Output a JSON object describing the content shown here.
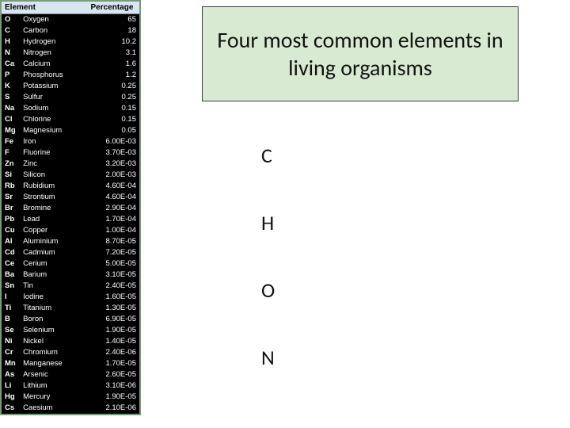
{
  "table": {
    "headers": {
      "element": "Element",
      "percentage": "Percentage"
    },
    "rows": [
      {
        "sym": "O",
        "name": "Oxygen",
        "pct": "65"
      },
      {
        "sym": "C",
        "name": "Carbon",
        "pct": "18"
      },
      {
        "sym": "H",
        "name": "Hydrogen",
        "pct": "10.2"
      },
      {
        "sym": "N",
        "name": "Nitrogen",
        "pct": "3.1"
      },
      {
        "sym": "Ca",
        "name": "Calcium",
        "pct": "1.6"
      },
      {
        "sym": "P",
        "name": "Phosphorus",
        "pct": "1.2"
      },
      {
        "sym": "K",
        "name": "Potassium",
        "pct": "0.25"
      },
      {
        "sym": "S",
        "name": "Sulfur",
        "pct": "0.25"
      },
      {
        "sym": "Na",
        "name": "Sodium",
        "pct": "0.15"
      },
      {
        "sym": "Cl",
        "name": "Chlorine",
        "pct": "0.15"
      },
      {
        "sym": "Mg",
        "name": "Magnesium",
        "pct": "0.05"
      },
      {
        "sym": "Fe",
        "name": "Iron",
        "pct": "6.00E-03"
      },
      {
        "sym": "F",
        "name": "Fluorine",
        "pct": "3.70E-03"
      },
      {
        "sym": "Zn",
        "name": "Zinc",
        "pct": "3.20E-03"
      },
      {
        "sym": "Si",
        "name": "Silicon",
        "pct": "2.00E-03"
      },
      {
        "sym": "Rb",
        "name": "Rubidium",
        "pct": "4.60E-04"
      },
      {
        "sym": "Sr",
        "name": "Strontium",
        "pct": "4.60E-04"
      },
      {
        "sym": "Br",
        "name": "Bromine",
        "pct": "2.90E-04"
      },
      {
        "sym": "Pb",
        "name": "Lead",
        "pct": "1.70E-04"
      },
      {
        "sym": "Cu",
        "name": "Copper",
        "pct": "1.00E-04"
      },
      {
        "sym": "Al",
        "name": "Aluminium",
        "pct": "8.70E-05"
      },
      {
        "sym": "Cd",
        "name": "Cadmium",
        "pct": "7.20E-05"
      },
      {
        "sym": "Ce",
        "name": "Cerium",
        "pct": "5.00E-05"
      },
      {
        "sym": "Ba",
        "name": "Barium",
        "pct": "3.10E-05"
      },
      {
        "sym": "Sn",
        "name": "Tin",
        "pct": "2.40E-05"
      },
      {
        "sym": "I",
        "name": "Iodine",
        "pct": "1.60E-05"
      },
      {
        "sym": "Ti",
        "name": "Titanium",
        "pct": "1.30E-05"
      },
      {
        "sym": "B",
        "name": "Boron",
        "pct": "6.90E-05"
      },
      {
        "sym": "Se",
        "name": "Selenium",
        "pct": "1.90E-05"
      },
      {
        "sym": "Ni",
        "name": "Nickel",
        "pct": "1.40E-05"
      },
      {
        "sym": "Cr",
        "name": "Chromium",
        "pct": "2.40E-06"
      },
      {
        "sym": "Mn",
        "name": "Manganese",
        "pct": "1.70E-05"
      },
      {
        "sym": "As",
        "name": "Arsenic",
        "pct": "2.60E-05"
      },
      {
        "sym": "Li",
        "name": "Lithium",
        "pct": "3.10E-06"
      },
      {
        "sym": "Hg",
        "name": "Mercury",
        "pct": "1.90E-05"
      },
      {
        "sym": "Cs",
        "name": "Caesium",
        "pct": "2.10E-06"
      }
    ],
    "colors": {
      "header_bg": "#d9e6f2",
      "header_text": "#000000",
      "cell_bg": "#000000",
      "cell_text": "#ffffff",
      "border": "#7a9a7a"
    }
  },
  "title": {
    "text": "Four most common elements in living organisms",
    "bg": "#d9ead3",
    "border": "#3a3a3a",
    "font_size": 28,
    "text_color": "#111111"
  },
  "chon": {
    "items": [
      "C",
      "H",
      "O",
      "N"
    ],
    "font_size": 26,
    "text_color": "#111111"
  }
}
